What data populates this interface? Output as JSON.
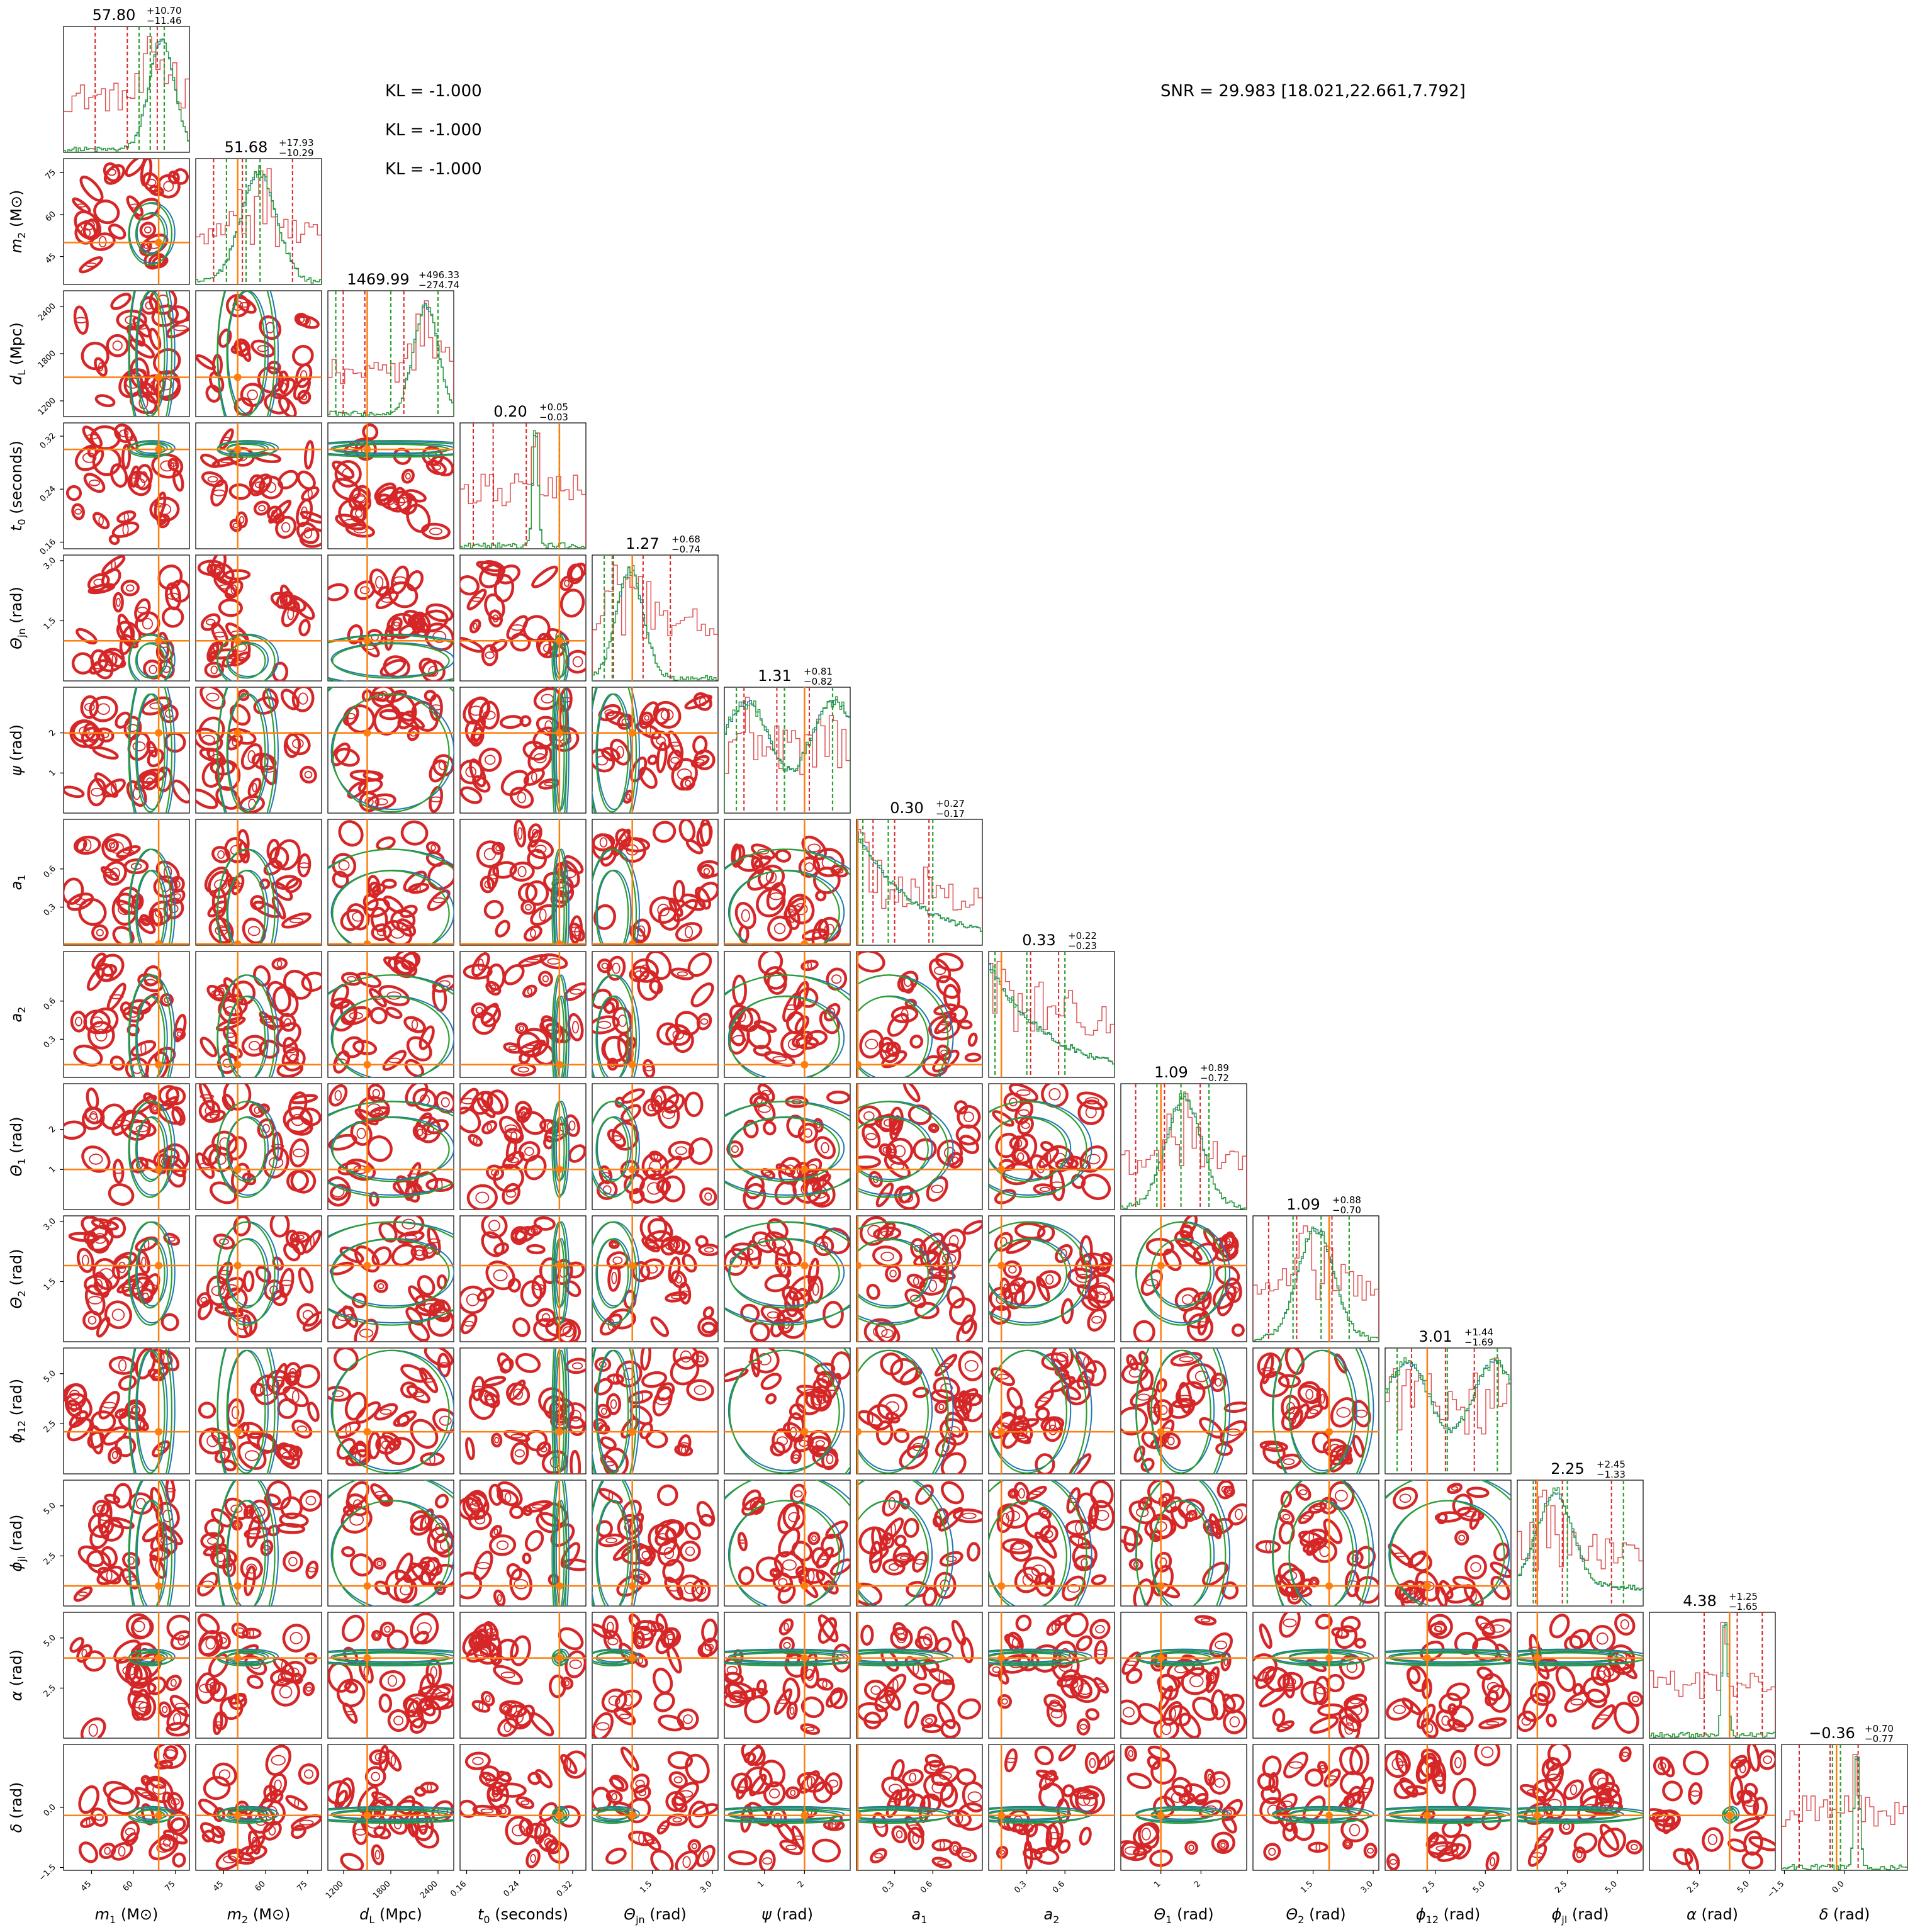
{
  "header": {
    "kl_lines": [
      "KL = -1.000",
      "KL = -1.000",
      "KL = -1.000"
    ],
    "snr": "SNR = 29.983 [18.021,22.661,7.792]"
  },
  "colors": {
    "red": "#d62728",
    "green": "#2ca02c",
    "blue": "#1f77b4",
    "orange": "#ff7f0e",
    "axes": "#000000"
  },
  "chart_data": {
    "type": "corner",
    "series": [
      {
        "name": "",
        "color": "#d62728",
        "role": "histogram and contours"
      },
      {
        "name": "",
        "color": "#2ca02c",
        "role": "histogram and contours"
      },
      {
        "name": "",
        "color": "#1f77b4",
        "role": "histogram and contours"
      }
    ],
    "truth_color": "#ff7f0e",
    "parameters": [
      {
        "key": "m1",
        "symbol": "m",
        "sub": "1",
        "unit": "(M",
        "unitsun": true,
        "range": [
          35,
          80
        ],
        "ticks": [
          45,
          60,
          75
        ],
        "truth": 69,
        "title": {
          "median": "57.80",
          "plus": "+10.70",
          "minus": "−11.46"
        },
        "quantiles_red": [
          46.3,
          57.8,
          68.5
        ],
        "quantiles_green": [
          62,
          66,
          71
        ],
        "peak": "right"
      },
      {
        "key": "m2",
        "symbol": "m",
        "sub": "2",
        "unit": "(M",
        "unitsun": true,
        "range": [
          35,
          80
        ],
        "ticks": [
          45,
          60,
          75
        ],
        "truth": 50,
        "title": {
          "median": "51.68",
          "plus": "+17.93",
          "minus": "−10.29"
        },
        "quantiles_red": [
          41.4,
          51.7,
          69.6
        ],
        "quantiles_green": [
          46,
          53,
          58
        ],
        "peak": "center"
      },
      {
        "key": "dL",
        "symbol": "d",
        "sub": "L",
        "unit": "(Mpc)",
        "unitsun": false,
        "range": [
          1000,
          2600
        ],
        "ticks": [
          1200,
          1800,
          2400
        ],
        "truth": 1500,
        "title": {
          "median": "1469.99",
          "plus": "+496.33",
          "minus": "−274.74"
        },
        "quantiles_red": [
          1195,
          1470,
          1966
        ],
        "quantiles_green": [
          1100,
          1800,
          2400
        ],
        "peak": "right"
      },
      {
        "key": "t0",
        "symbol": "t",
        "sub": "0",
        "unit": "(seconds)",
        "unitsun": false,
        "range": [
          0.15,
          0.34
        ],
        "ticks": [
          0.16,
          0.24,
          0.32
        ],
        "truth": 0.3,
        "title": {
          "median": "0.20",
          "plus": "+0.05",
          "minus": "−0.03"
        },
        "quantiles_red": [
          0.17,
          0.2,
          0.25
        ],
        "quantiles_green": [
          0.3,
          0.3,
          0.3
        ],
        "peak": "spike"
      },
      {
        "key": "thetajn",
        "symbol": "Θ",
        "sub": "jn",
        "unit": "(rad)",
        "unitsun": false,
        "range": [
          0,
          3.14
        ],
        "ticks": [
          1.5,
          3.0
        ],
        "tickLabels": [
          "1.5",
          "3.0"
        ],
        "truth": 1.0,
        "title": {
          "median": "1.27",
          "plus": "+0.68",
          "minus": "−0.74"
        },
        "quantiles_red": [
          0.53,
          1.27,
          1.95
        ],
        "quantiles_green": [
          0.3,
          0.5,
          1.0
        ],
        "peak": "left"
      },
      {
        "key": "psi",
        "symbol": "ψ",
        "sub": "",
        "unit": "(rad)",
        "unitsun": false,
        "range": [
          0,
          3.14
        ],
        "ticks": [
          1,
          2
        ],
        "truth": 2.0,
        "title": {
          "median": "1.31",
          "plus": "+0.81",
          "minus": "−0.82"
        },
        "quantiles_red": [
          0.49,
          1.31,
          2.12
        ],
        "quantiles_green": [
          0.3,
          1.5,
          2.7
        ],
        "peak": "flat"
      },
      {
        "key": "a1",
        "symbol": "a",
        "sub": "1",
        "unit": "",
        "unitsun": false,
        "range": [
          0,
          0.99
        ],
        "ticks": [
          0.3,
          0.6
        ],
        "truth": 0.01,
        "title": {
          "median": "0.30",
          "plus": "+0.27",
          "minus": "−0.17"
        },
        "quantiles_red": [
          0.13,
          0.3,
          0.57
        ],
        "quantiles_green": [
          0.05,
          0.25,
          0.6
        ],
        "peak": "decay"
      },
      {
        "key": "a2",
        "symbol": "a",
        "sub": "2",
        "unit": "",
        "unitsun": false,
        "range": [
          0,
          0.99
        ],
        "ticks": [
          0.3,
          0.6
        ],
        "truth": 0.1,
        "title": {
          "median": "0.33",
          "plus": "+0.22",
          "minus": "−0.23"
        },
        "quantiles_red": [
          0.1,
          0.33,
          0.55
        ],
        "quantiles_green": [
          0.05,
          0.3,
          0.6
        ],
        "peak": "decay"
      },
      {
        "key": "theta1",
        "symbol": "Θ",
        "sub": "1",
        "unit": "(rad)",
        "unitsun": false,
        "range": [
          0,
          3.14
        ],
        "ticks": [
          1,
          2
        ],
        "truth": 1.0,
        "title": {
          "median": "1.09",
          "plus": "+0.89",
          "minus": "−0.72"
        },
        "quantiles_red": [
          0.37,
          1.09,
          1.98
        ],
        "quantiles_green": [
          0.9,
          1.5,
          2.2
        ],
        "peak": "center"
      },
      {
        "key": "theta2",
        "symbol": "Θ",
        "sub": "2",
        "unit": "(rad)",
        "unitsun": false,
        "range": [
          0,
          3.14
        ],
        "ticks": [
          1.5,
          3.0
        ],
        "tickLabels": [
          "1.5",
          "3.0"
        ],
        "truth": 1.9,
        "title": {
          "median": "1.09",
          "plus": "+0.88",
          "minus": "−0.70"
        },
        "quantiles_red": [
          0.39,
          1.09,
          1.97
        ],
        "quantiles_green": [
          1.0,
          1.7,
          2.4
        ],
        "peak": "center"
      },
      {
        "key": "phi12",
        "symbol": "ϕ",
        "sub": "12",
        "unit": "(rad)",
        "unitsun": false,
        "range": [
          0,
          6.28
        ],
        "ticks": [
          2.5,
          5.0
        ],
        "tickLabels": [
          "2.5",
          "5.0"
        ],
        "truth": 2.1,
        "title": {
          "median": "3.01",
          "plus": "+1.44",
          "minus": "−1.69"
        },
        "quantiles_red": [
          1.32,
          3.01,
          4.45
        ],
        "quantiles_green": [
          0.6,
          3.1,
          5.6
        ],
        "peak": "flat"
      },
      {
        "key": "phijl",
        "symbol": "ϕ",
        "sub": "jl",
        "unit": "(rad)",
        "unitsun": false,
        "range": [
          0,
          6.28
        ],
        "ticks": [
          2.5,
          5.0
        ],
        "tickLabels": [
          "2.5",
          "5.0"
        ],
        "truth": 1.0,
        "title": {
          "median": "2.25",
          "plus": "+2.45",
          "minus": "−1.33"
        },
        "quantiles_red": [
          0.92,
          2.25,
          4.7
        ],
        "quantiles_green": [
          0.8,
          2.5,
          5.3
        ],
        "peak": "leftmid"
      },
      {
        "key": "alpha",
        "symbol": "α",
        "sub": "",
        "unit": "(rad)",
        "unitsun": false,
        "range": [
          0,
          6.28
        ],
        "ticks": [
          2.5,
          5.0
        ],
        "tickLabels": [
          "2.5",
          "5.0"
        ],
        "truth": 4.0,
        "title": {
          "median": "4.38",
          "plus": "+1.25",
          "minus": "−1.65"
        },
        "quantiles_red": [
          2.73,
          4.38,
          5.63
        ],
        "quantiles_green": [
          4.0,
          4.0,
          4.0
        ],
        "peak": "spike"
      },
      {
        "key": "delta",
        "symbol": "δ",
        "sub": "",
        "unit": "(rad)",
        "unitsun": false,
        "range": [
          -1.57,
          1.57
        ],
        "ticks": [
          -1.5,
          0.0
        ],
        "tickLabels": [
          "−1.5",
          "0.0"
        ],
        "truth": -0.2,
        "title": {
          "median": "−0.36",
          "plus": "+0.70",
          "minus": "−0.77"
        },
        "quantiles_red": [
          -1.13,
          -0.36,
          0.34
        ],
        "quantiles_green": [
          -0.3,
          -0.2,
          -0.1
        ],
        "peak": "spike"
      }
    ]
  }
}
